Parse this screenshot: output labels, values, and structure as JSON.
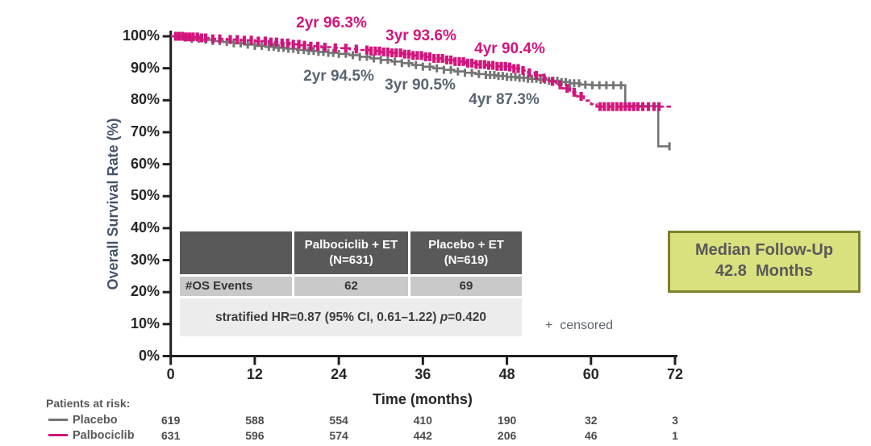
{
  "chart_data": {
    "type": "line",
    "subtype": "kaplan-meier-step",
    "title": "",
    "xlabel": "Time (months)",
    "ylabel": "Overall Survival Rate (%)",
    "xlim": [
      0,
      72
    ],
    "ylim": [
      0,
      100
    ],
    "x_ticks": [
      0,
      12,
      24,
      36,
      48,
      60,
      72
    ],
    "y_tick_labels": [
      "100%",
      "90%",
      "80%",
      "70%",
      "60%",
      "50%",
      "40%",
      "30%",
      "20%",
      "10%",
      "0%"
    ],
    "grid": false,
    "censored_note": "+  censored",
    "series": [
      {
        "name": "Palbociclib",
        "color": "#d2157c",
        "line_style": "dashed",
        "annotations": [
          {
            "label": "2yr 96.3%"
          },
          {
            "label": "3yr 93.6%"
          },
          {
            "label": "4yr 90.4%"
          }
        ],
        "points": [
          [
            0,
            100
          ],
          [
            2,
            99.8
          ],
          [
            4,
            99.5
          ],
          [
            6,
            99.2
          ],
          [
            8,
            99.0
          ],
          [
            10,
            98.8
          ],
          [
            12,
            98.5
          ],
          [
            14,
            98.2
          ],
          [
            15.5,
            97.9
          ],
          [
            17,
            97.5
          ],
          [
            18.5,
            97.2
          ],
          [
            20,
            96.9
          ],
          [
            21.5,
            96.6
          ],
          [
            23,
            96.4
          ],
          [
            24,
            96.3
          ],
          [
            25.5,
            96.0
          ],
          [
            27,
            95.7
          ],
          [
            28.5,
            95.4
          ],
          [
            30,
            95.1
          ],
          [
            31.5,
            94.8
          ],
          [
            33,
            94.4
          ],
          [
            34.5,
            94.0
          ],
          [
            36,
            93.6
          ],
          [
            37.5,
            93.1
          ],
          [
            39,
            92.6
          ],
          [
            40.5,
            92.1
          ],
          [
            42,
            91.6
          ],
          [
            43.5,
            91.2
          ],
          [
            45,
            90.9
          ],
          [
            46.5,
            90.6
          ],
          [
            48,
            90.4
          ],
          [
            49,
            89.9
          ],
          [
            50,
            89.3
          ],
          [
            51,
            88.6
          ],
          [
            52,
            87.8
          ],
          [
            53,
            86.9
          ],
          [
            54,
            85.9
          ],
          [
            55,
            84.8
          ],
          [
            56,
            83.7
          ],
          [
            57,
            82.5
          ],
          [
            58,
            81.2
          ],
          [
            59,
            79.9
          ],
          [
            60,
            78.8
          ],
          [
            60.8,
            78.0
          ],
          [
            71.5,
            78.0
          ]
        ],
        "censor_marks": [
          0.7,
          1.2,
          1.7,
          2.2,
          2.7,
          3.2,
          3.8,
          4.4,
          5,
          6,
          7,
          8.5,
          9.5,
          10.5,
          11.5,
          12.5,
          13.5,
          14.3,
          15.1,
          15.9,
          16.7,
          17.5,
          18.3,
          19.1,
          20,
          21,
          22,
          23.5,
          25,
          26.5,
          28,
          28.6,
          29.2,
          29.8,
          30.4,
          31,
          31.6,
          32.2,
          32.8,
          33.4,
          34,
          34.6,
          35.2,
          35.8,
          36.4,
          37,
          37.6,
          38.2,
          38.8,
          39.4,
          40,
          40.6,
          41.2,
          41.8,
          42.4,
          43,
          43.6,
          44.2,
          44.8,
          45.4,
          46,
          46.6,
          47.2,
          47.8,
          48.4,
          49,
          49.6,
          50.3,
          51.2,
          52.2,
          53.3,
          54.5,
          55.6,
          56.6,
          57.6,
          58.6,
          61.3,
          61.9,
          62.5,
          63.1,
          63.7,
          64.3,
          64.9,
          65.5,
          66.1,
          66.7,
          67.4,
          68.2,
          69.0,
          69.7
        ]
      },
      {
        "name": "Placebo",
        "color": "#747474",
        "line_style": "solid",
        "annotations": [
          {
            "label": "2yr 94.5%"
          },
          {
            "label": "3yr 90.5%"
          },
          {
            "label": "4yr 87.3%"
          }
        ],
        "points": [
          [
            0,
            100
          ],
          [
            1.5,
            99.6
          ],
          [
            3,
            99.2
          ],
          [
            4.5,
            98.9
          ],
          [
            6,
            98.5
          ],
          [
            7.5,
            98.2
          ],
          [
            9,
            97.8
          ],
          [
            10.5,
            97.4
          ],
          [
            12,
            97.0
          ],
          [
            13.5,
            96.7
          ],
          [
            15,
            96.4
          ],
          [
            16.5,
            96.1
          ],
          [
            18,
            95.7
          ],
          [
            19.5,
            95.4
          ],
          [
            21,
            95.1
          ],
          [
            22.5,
            94.8
          ],
          [
            24,
            94.5
          ],
          [
            25.5,
            94.1
          ],
          [
            27,
            93.6
          ],
          [
            28.5,
            93.1
          ],
          [
            30,
            92.6
          ],
          [
            31.5,
            92.1
          ],
          [
            33,
            91.6
          ],
          [
            34.5,
            91.0
          ],
          [
            36,
            90.5
          ],
          [
            37.5,
            90.0
          ],
          [
            39,
            89.5
          ],
          [
            40.5,
            89.0
          ],
          [
            42,
            88.6
          ],
          [
            43.5,
            88.2
          ],
          [
            45,
            87.9
          ],
          [
            46.5,
            87.6
          ],
          [
            48,
            87.3
          ],
          [
            49.5,
            87.0
          ],
          [
            51,
            86.7
          ],
          [
            52.5,
            86.4
          ],
          [
            54,
            86.1
          ],
          [
            55.5,
            85.7
          ],
          [
            57,
            85.3
          ],
          [
            58.5,
            84.9
          ],
          [
            60,
            84.7
          ],
          [
            64.9,
            78.2
          ],
          [
            69.6,
            65.6
          ],
          [
            71.3,
            65.6
          ]
        ],
        "censor_marks": [
          2,
          3,
          4,
          5,
          6,
          7,
          8,
          9,
          10,
          11,
          12,
          13,
          14,
          14.7,
          15.4,
          16.1,
          16.8,
          17.5,
          18.2,
          19,
          19.7,
          20.4,
          21.1,
          21.8,
          22.5,
          23.2,
          24,
          25,
          26,
          27,
          28,
          29,
          30,
          31,
          32,
          33,
          34,
          35,
          36,
          37,
          38,
          39,
          40,
          41,
          42,
          43,
          44,
          45,
          45.6,
          46.2,
          46.8,
          47.4,
          48,
          48.6,
          49.2,
          49.8,
          50.4,
          51,
          51.6,
          52.2,
          52.8,
          53.4,
          54,
          54.6,
          55.2,
          55.8,
          56.4,
          57,
          57.6,
          58.3,
          59.2,
          60.2,
          61.2,
          62.2,
          63.2,
          64.3,
          71.2
        ]
      }
    ]
  },
  "summary_table": {
    "columns": [
      {
        "line1": "Palbociclib + ET",
        "line2": "(N=631)"
      },
      {
        "line1": "Placebo + ET",
        "line2": "(N=619)"
      }
    ],
    "row_label": "#OS Events",
    "values": [
      "62",
      "69"
    ],
    "footnote_prefix": "stratified HR=0.87 (95% CI, 0.61–1.22) ",
    "footnote_p": "p",
    "footnote_suffix": "=0.420"
  },
  "median_box": {
    "line1": "Median Follow-Up",
    "line2": "42.8  Months"
  },
  "patients_at_risk": {
    "heading": "Patients at risk:",
    "rows": [
      {
        "name": "Placebo",
        "color": "#747474",
        "counts": [
          "619",
          "588",
          "554",
          "410",
          "190",
          "32",
          "3"
        ]
      },
      {
        "name": "Palbociclib",
        "color": "#d2157c",
        "counts": [
          "631",
          "596",
          "574",
          "442",
          "206",
          "46",
          "1"
        ]
      }
    ]
  }
}
